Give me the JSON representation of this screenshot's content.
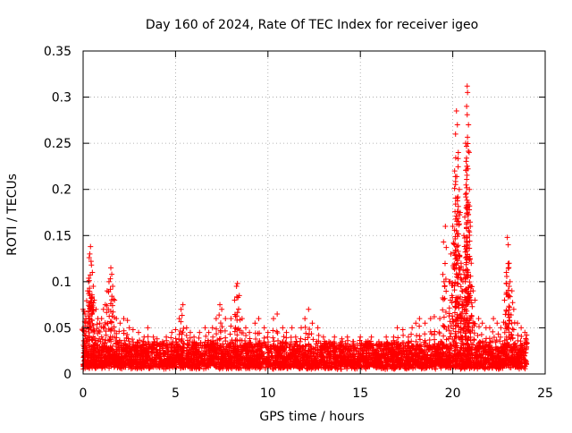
{
  "chart_data": {
    "type": "scatter",
    "title": "Day 160 of 2024, Rate Of TEC Index for receiver igeo",
    "xlabel": "GPS time / hours",
    "ylabel": "ROTI / TECUs",
    "xlim": [
      0,
      25
    ],
    "ylim": [
      0,
      0.35
    ],
    "xticks": [
      0,
      5,
      10,
      15,
      20,
      25
    ],
    "yticks": [
      0,
      0.05,
      0.1,
      0.15,
      0.2,
      0.25,
      0.3,
      0.35
    ],
    "xtick_labels": [
      "0",
      "5",
      "10",
      "15",
      "20",
      "25"
    ],
    "ytick_labels": [
      "0",
      "0.05",
      "0.1",
      "0.15",
      "0.2",
      "0.25",
      "0.3",
      "0.35"
    ],
    "grid": true,
    "marker": "+",
    "series": [
      {
        "name": "ROTI",
        "color": "#ff0000",
        "points": [
          [
            0.0,
            0.07
          ],
          [
            0.05,
            0.068
          ],
          [
            0.1,
            0.065
          ],
          [
            0.15,
            0.06
          ],
          [
            0.2,
            0.055
          ],
          [
            0.25,
            0.09
          ],
          [
            0.3,
            0.1
          ],
          [
            0.33,
            0.126
          ],
          [
            0.36,
            0.13
          ],
          [
            0.4,
            0.138
          ],
          [
            0.43,
            0.122
          ],
          [
            0.45,
            0.118
          ],
          [
            0.5,
            0.11
          ],
          [
            0.55,
            0.095
          ],
          [
            0.6,
            0.08
          ],
          [
            0.7,
            0.07
          ],
          [
            0.8,
            0.06
          ],
          [
            0.9,
            0.055
          ],
          [
            1.0,
            0.06
          ],
          [
            1.1,
            0.07
          ],
          [
            1.2,
            0.075
          ],
          [
            1.3,
            0.09
          ],
          [
            1.4,
            0.1
          ],
          [
            1.5,
            0.115
          ],
          [
            1.55,
            0.108
          ],
          [
            1.6,
            0.095
          ],
          [
            1.7,
            0.08
          ],
          [
            1.8,
            0.06
          ],
          [
            2.0,
            0.055
          ],
          [
            2.2,
            0.06
          ],
          [
            2.4,
            0.058
          ],
          [
            2.5,
            0.05
          ],
          [
            2.7,
            0.048
          ],
          [
            3.0,
            0.045
          ],
          [
            3.3,
            0.04
          ],
          [
            3.5,
            0.05
          ],
          [
            3.8,
            0.04
          ],
          [
            4.0,
            0.038
          ],
          [
            4.3,
            0.035
          ],
          [
            4.5,
            0.04
          ],
          [
            4.8,
            0.045
          ],
          [
            5.0,
            0.048
          ],
          [
            5.2,
            0.06
          ],
          [
            5.3,
            0.07
          ],
          [
            5.4,
            0.075
          ],
          [
            5.6,
            0.05
          ],
          [
            5.8,
            0.045
          ],
          [
            6.0,
            0.04
          ],
          [
            6.3,
            0.045
          ],
          [
            6.6,
            0.05
          ],
          [
            6.8,
            0.045
          ],
          [
            7.0,
            0.05
          ],
          [
            7.2,
            0.06
          ],
          [
            7.4,
            0.075
          ],
          [
            7.5,
            0.07
          ],
          [
            7.7,
            0.06
          ],
          [
            8.0,
            0.06
          ],
          [
            8.2,
            0.08
          ],
          [
            8.3,
            0.095
          ],
          [
            8.35,
            0.098
          ],
          [
            8.45,
            0.085
          ],
          [
            8.6,
            0.06
          ],
          [
            8.8,
            0.05
          ],
          [
            9.0,
            0.045
          ],
          [
            9.3,
            0.055
          ],
          [
            9.5,
            0.06
          ],
          [
            9.8,
            0.05
          ],
          [
            10.0,
            0.045
          ],
          [
            10.3,
            0.06
          ],
          [
            10.5,
            0.065
          ],
          [
            10.8,
            0.05
          ],
          [
            11.0,
            0.045
          ],
          [
            11.3,
            0.05
          ],
          [
            11.5,
            0.04
          ],
          [
            11.8,
            0.05
          ],
          [
            12.0,
            0.06
          ],
          [
            12.2,
            0.07
          ],
          [
            12.4,
            0.055
          ],
          [
            12.7,
            0.05
          ],
          [
            13.0,
            0.04
          ],
          [
            13.3,
            0.035
          ],
          [
            13.6,
            0.04
          ],
          [
            14.0,
            0.038
          ],
          [
            14.3,
            0.04
          ],
          [
            14.6,
            0.035
          ],
          [
            15.0,
            0.04
          ],
          [
            15.3,
            0.035
          ],
          [
            15.6,
            0.04
          ],
          [
            16.0,
            0.035
          ],
          [
            16.4,
            0.04
          ],
          [
            16.8,
            0.04
          ],
          [
            17.0,
            0.05
          ],
          [
            17.3,
            0.048
          ],
          [
            17.6,
            0.04
          ],
          [
            17.8,
            0.05
          ],
          [
            18.0,
            0.055
          ],
          [
            18.2,
            0.06
          ],
          [
            18.5,
            0.055
          ],
          [
            18.8,
            0.06
          ],
          [
            19.0,
            0.062
          ],
          [
            19.3,
            0.06
          ],
          [
            19.5,
            0.143
          ],
          [
            19.6,
            0.16
          ],
          [
            19.8,
            0.1
          ],
          [
            19.9,
            0.13
          ],
          [
            20.0,
            0.16
          ],
          [
            20.1,
            0.22
          ],
          [
            20.15,
            0.26
          ],
          [
            20.2,
            0.285
          ],
          [
            20.25,
            0.27
          ],
          [
            20.3,
            0.24
          ],
          [
            20.35,
            0.2
          ],
          [
            20.4,
            0.175
          ],
          [
            20.45,
            0.12
          ],
          [
            20.5,
            0.09
          ],
          [
            20.55,
            0.1
          ],
          [
            20.6,
            0.15
          ],
          [
            20.65,
            0.17
          ],
          [
            20.7,
            0.25
          ],
          [
            20.75,
            0.29
          ],
          [
            20.78,
            0.312
          ],
          [
            20.8,
            0.305
          ],
          [
            20.85,
            0.27
          ],
          [
            20.9,
            0.2
          ],
          [
            20.95,
            0.16
          ],
          [
            21.0,
            0.12
          ],
          [
            21.1,
            0.09
          ],
          [
            21.2,
            0.08
          ],
          [
            21.4,
            0.06
          ],
          [
            21.6,
            0.055
          ],
          [
            21.8,
            0.05
          ],
          [
            22.0,
            0.05
          ],
          [
            22.2,
            0.06
          ],
          [
            22.4,
            0.055
          ],
          [
            22.6,
            0.05
          ],
          [
            22.8,
            0.08
          ],
          [
            22.9,
            0.11
          ],
          [
            22.95,
            0.148
          ],
          [
            23.0,
            0.14
          ],
          [
            23.05,
            0.12
          ],
          [
            23.1,
            0.1
          ],
          [
            23.2,
            0.09
          ],
          [
            23.3,
            0.07
          ],
          [
            23.5,
            0.055
          ],
          [
            23.7,
            0.05
          ],
          [
            23.9,
            0.045
          ],
          [
            24.0,
            0.042
          ]
        ],
        "background_band": {
          "x_range": [
            0,
            24
          ],
          "y_min": 0.005,
          "y_max_typical": 0.03,
          "density_per_hour": 180
        }
      }
    ]
  }
}
